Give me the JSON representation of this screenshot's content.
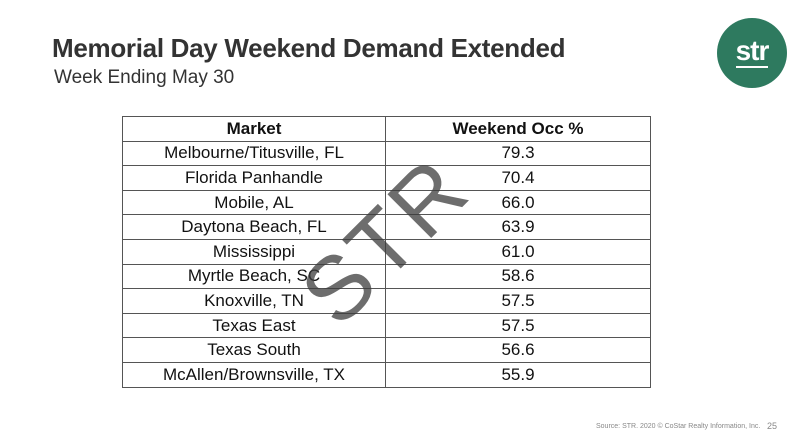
{
  "header": {
    "title": "Memorial Day Weekend Demand Extended",
    "subtitle": "Week Ending May 30",
    "logo": "str"
  },
  "watermark": "STR",
  "table": {
    "columns": [
      "Market",
      "Weekend Occ %"
    ],
    "rows": [
      [
        "Melbourne/Titusville, FL",
        "79.3"
      ],
      [
        "Florida Panhandle",
        "70.4"
      ],
      [
        "Mobile, AL",
        "66.0"
      ],
      [
        "Daytona Beach, FL",
        "63.9"
      ],
      [
        "Mississippi",
        "61.0"
      ],
      [
        "Myrtle Beach, SC",
        "58.6"
      ],
      [
        "Knoxville, TN",
        "57.5"
      ],
      [
        "Texas East",
        "57.5"
      ],
      [
        "Texas South",
        "56.6"
      ],
      [
        "McAllen/Brownsville, TX",
        "55.9"
      ]
    ]
  },
  "footer": {
    "source": "Source: STR. 2020 © CoStar Realty Information, Inc.",
    "page": "25"
  }
}
